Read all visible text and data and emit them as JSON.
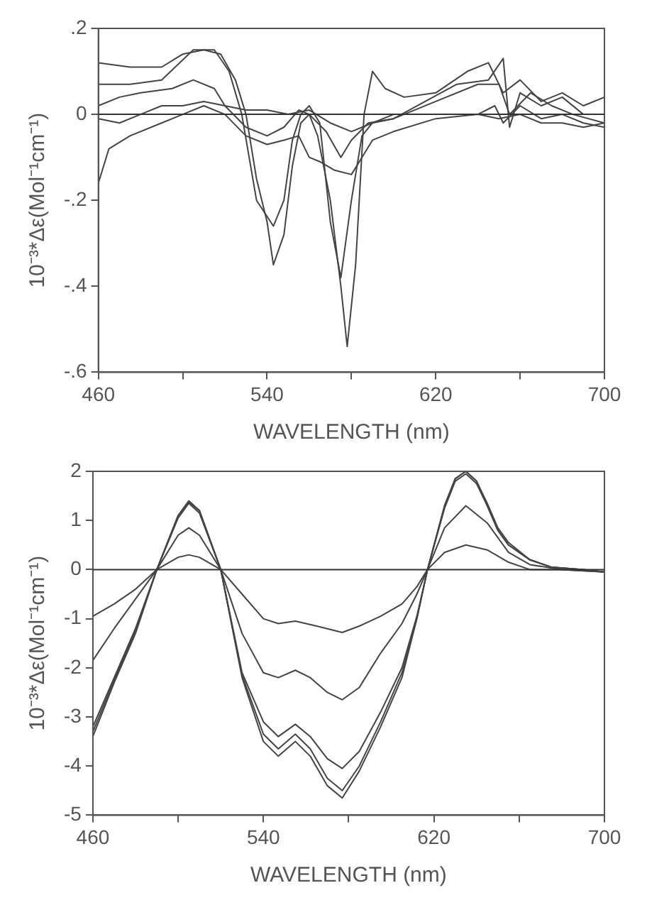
{
  "chart_data": [
    {
      "type": "line",
      "xlabel": "WAVELENGTH (nm)",
      "ylabel": "10⁻³*Δε(Mol⁻¹cm⁻¹)",
      "xlim": [
        460,
        700
      ],
      "ylim": [
        -0.6,
        0.2
      ],
      "xticks": [
        460,
        {
          "value": 500,
          "label": null
        },
        540,
        {
          "value": 580,
          "label": null
        },
        620,
        {
          "value": 660,
          "label": null
        },
        700
      ],
      "yticks": [
        {
          "value": 0.2,
          "label": ".2"
        },
        0,
        {
          "value": -0.2,
          "label": "-.2"
        },
        {
          "value": -0.4,
          "label": "-.4"
        },
        {
          "value": -0.6,
          "label": "-.6"
        }
      ],
      "grid": false,
      "legend": false,
      "marker": "none",
      "line_style": "solid",
      "ref_lines": [
        {
          "axis": "y",
          "value": 0,
          "color": "#333333"
        }
      ],
      "series": [
        {
          "color": "#444444",
          "x": [
            460,
            475,
            490,
            500,
            510,
            518,
            525,
            530,
            535,
            540,
            543,
            548,
            552,
            556,
            560,
            564,
            570,
            575,
            578,
            582,
            586,
            590,
            596,
            605,
            620,
            635,
            645,
            652,
            660,
            670,
            680,
            690,
            700
          ],
          "values": [
            0.12,
            0.11,
            0.11,
            0.14,
            0.15,
            0.14,
            0.08,
            0.0,
            -0.15,
            -0.25,
            -0.35,
            -0.28,
            -0.12,
            -0.02,
            0.0,
            -0.05,
            -0.2,
            -0.4,
            -0.54,
            -0.35,
            0.0,
            0.1,
            0.06,
            0.04,
            0.05,
            0.1,
            0.12,
            0.05,
            0.08,
            0.03,
            0.05,
            0.02,
            0.04
          ]
        },
        {
          "color": "#444444",
          "x": [
            460,
            475,
            490,
            505,
            515,
            522,
            528,
            535,
            543,
            548,
            552,
            556,
            560,
            565,
            570,
            575,
            580,
            585,
            590,
            600,
            615,
            630,
            645,
            652,
            655,
            660,
            670,
            680,
            690,
            700
          ],
          "values": [
            0.07,
            0.07,
            0.08,
            0.15,
            0.15,
            0.1,
            0.0,
            -0.2,
            -0.26,
            -0.2,
            -0.06,
            0.0,
            0.02,
            -0.02,
            -0.25,
            -0.38,
            -0.2,
            -0.05,
            -0.02,
            -0.01,
            0.03,
            0.07,
            0.08,
            0.13,
            -0.03,
            0.05,
            0.02,
            0.04,
            0.0,
            0.0
          ]
        },
        {
          "color": "#444444",
          "x": [
            460,
            470,
            480,
            495,
            505,
            515,
            520,
            530,
            540,
            548,
            555,
            560,
            568,
            575,
            580,
            588,
            600,
            620,
            640,
            650,
            655,
            665,
            675,
            685,
            700
          ],
          "values": [
            0.02,
            0.04,
            0.05,
            0.06,
            0.08,
            0.06,
            0.02,
            -0.03,
            -0.05,
            -0.03,
            0.01,
            0.0,
            -0.04,
            -0.1,
            -0.06,
            -0.02,
            -0.01,
            0.03,
            0.07,
            0.07,
            0.0,
            0.05,
            0.02,
            0.0,
            -0.02
          ]
        },
        {
          "color": "#444444",
          "x": [
            460,
            470,
            480,
            490,
            500,
            510,
            520,
            530,
            540,
            550,
            560,
            570,
            580,
            590,
            600,
            620,
            640,
            648,
            652,
            660,
            670,
            680,
            690,
            700
          ],
          "values": [
            -0.01,
            -0.02,
            0.0,
            0.02,
            0.02,
            0.03,
            0.02,
            0.01,
            0.01,
            0.0,
            0.01,
            -0.02,
            -0.04,
            -0.02,
            0.0,
            0.0,
            0.0,
            0.02,
            -0.02,
            0.02,
            -0.01,
            0.0,
            -0.02,
            -0.03
          ]
        },
        {
          "color": "#444444",
          "x": [
            460,
            465,
            475,
            490,
            500,
            510,
            520,
            530,
            540,
            548,
            555,
            560,
            565,
            572,
            580,
            585,
            590,
            600,
            620,
            640,
            650,
            660,
            670,
            680,
            690,
            700
          ],
          "values": [
            -0.16,
            -0.08,
            -0.05,
            -0.02,
            0.0,
            0.02,
            0.0,
            -0.05,
            -0.07,
            -0.06,
            -0.05,
            -0.1,
            -0.11,
            -0.13,
            -0.14,
            -0.1,
            -0.06,
            -0.04,
            -0.01,
            0.0,
            -0.01,
            0.0,
            -0.02,
            -0.02,
            -0.03,
            -0.02
          ]
        }
      ]
    },
    {
      "type": "line",
      "xlabel": "WAVELENGTH (nm)",
      "ylabel": "10⁻³*Δε(Mol⁻¹cm⁻¹)",
      "xlim": [
        460,
        700
      ],
      "ylim": [
        -5,
        2
      ],
      "xticks": [
        460,
        {
          "value": 500,
          "label": null
        },
        540,
        {
          "value": 580,
          "label": null
        },
        620,
        {
          "value": 660,
          "label": null
        },
        700
      ],
      "yticks": [
        2,
        1,
        0,
        -1,
        -2,
        -3,
        -4,
        -5
      ],
      "grid": false,
      "legend": false,
      "marker": "none",
      "line_style": "solid",
      "ref_lines": [
        {
          "axis": "y",
          "value": 0,
          "color": "#333333"
        }
      ],
      "series": [
        {
          "color": "#444444",
          "x": [
            460,
            470,
            480,
            490,
            500,
            505,
            510,
            520,
            530,
            540,
            547,
            555,
            562,
            570,
            577,
            585,
            595,
            605,
            612,
            617,
            625,
            630,
            635,
            640,
            645,
            650,
            655,
            665,
            675,
            690,
            700
          ],
          "values": [
            -3.4,
            -2.3,
            -1.3,
            0.0,
            1.1,
            1.4,
            1.2,
            0.0,
            -2.2,
            -3.5,
            -3.8,
            -3.5,
            -3.8,
            -4.4,
            -4.65,
            -4.1,
            -3.2,
            -2.2,
            -1.0,
            0.0,
            1.3,
            1.85,
            2.0,
            1.8,
            1.3,
            0.8,
            0.5,
            0.2,
            0.05,
            0.0,
            -0.05
          ]
        },
        {
          "color": "#444444",
          "x": [
            460,
            470,
            480,
            490,
            500,
            505,
            510,
            520,
            530,
            540,
            547,
            555,
            562,
            570,
            577,
            585,
            595,
            605,
            612,
            617,
            625,
            630,
            635,
            640,
            645,
            650,
            655,
            665,
            675,
            690,
            700
          ],
          "values": [
            -3.3,
            -2.25,
            -1.25,
            0.0,
            1.1,
            1.38,
            1.2,
            0.0,
            -2.15,
            -3.35,
            -3.65,
            -3.35,
            -3.65,
            -4.25,
            -4.5,
            -4.0,
            -3.1,
            -2.1,
            -1.0,
            0.0,
            1.3,
            1.85,
            2.0,
            1.8,
            1.35,
            0.85,
            0.55,
            0.2,
            0.05,
            0.0,
            -0.05
          ]
        },
        {
          "color": "#444444",
          "x": [
            460,
            470,
            480,
            490,
            500,
            505,
            510,
            520,
            530,
            540,
            547,
            555,
            562,
            570,
            577,
            585,
            595,
            605,
            612,
            617,
            625,
            630,
            635,
            640,
            645,
            650,
            655,
            665,
            675,
            690,
            700
          ],
          "values": [
            -3.2,
            -2.2,
            -1.2,
            0.0,
            1.05,
            1.35,
            1.15,
            0.0,
            -2.1,
            -3.1,
            -3.4,
            -3.15,
            -3.4,
            -3.85,
            -4.05,
            -3.7,
            -2.9,
            -2.0,
            -0.95,
            0.0,
            1.25,
            1.8,
            1.95,
            1.75,
            1.3,
            0.8,
            0.5,
            0.2,
            0.05,
            0.0,
            -0.05
          ]
        },
        {
          "color": "#444444",
          "x": [
            460,
            470,
            480,
            490,
            500,
            505,
            510,
            520,
            530,
            540,
            547,
            555,
            562,
            570,
            577,
            585,
            595,
            605,
            612,
            617,
            625,
            635,
            645,
            655,
            665,
            680,
            700
          ],
          "values": [
            -1.85,
            -1.2,
            -0.6,
            0.0,
            0.7,
            0.85,
            0.7,
            0.0,
            -1.3,
            -2.1,
            -2.2,
            -2.05,
            -2.2,
            -2.5,
            -2.65,
            -2.4,
            -1.7,
            -1.1,
            -0.5,
            0.0,
            0.85,
            1.3,
            0.95,
            0.35,
            0.1,
            0.0,
            -0.05
          ]
        },
        {
          "color": "#444444",
          "x": [
            460,
            470,
            480,
            490,
            500,
            505,
            510,
            520,
            530,
            540,
            547,
            555,
            565,
            577,
            585,
            595,
            605,
            612,
            617,
            625,
            635,
            645,
            655,
            665,
            680,
            700
          ],
          "values": [
            -0.95,
            -0.7,
            -0.4,
            0.0,
            0.25,
            0.3,
            0.25,
            0.0,
            -0.5,
            -1.0,
            -1.1,
            -1.05,
            -1.15,
            -1.28,
            -1.15,
            -0.95,
            -0.7,
            -0.35,
            0.0,
            0.35,
            0.5,
            0.4,
            0.15,
            0.0,
            0.0,
            -0.05
          ]
        }
      ]
    }
  ]
}
